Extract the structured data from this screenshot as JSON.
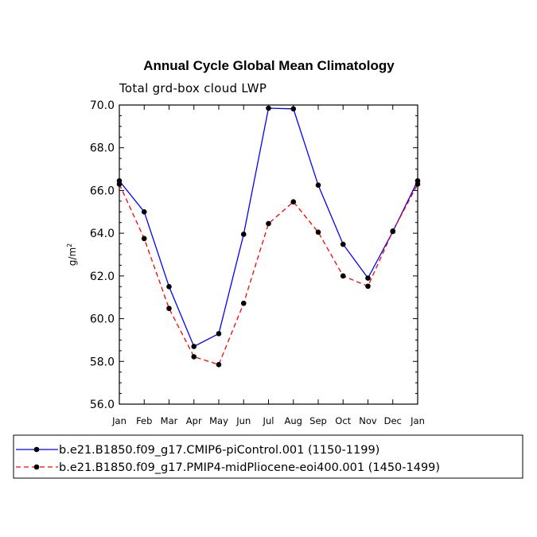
{
  "chart_data": {
    "type": "line",
    "title": "Annual Cycle Global Mean Climatology",
    "subtitle": "Total grd-box cloud LWP",
    "ylabel": "g/m",
    "ylabel_superscript": "2",
    "ylim": [
      56.0,
      70.0
    ],
    "yticks": [
      "56.0",
      "58.0",
      "60.0",
      "62.0",
      "64.0",
      "66.0",
      "68.0",
      "70.0"
    ],
    "ytick_values": [
      56,
      58,
      60,
      62,
      64,
      66,
      68,
      70
    ],
    "categories": [
      "Jan",
      "Feb",
      "Mar",
      "Apr",
      "May",
      "Jun",
      "Jul",
      "Aug",
      "Sep",
      "Oct",
      "Nov",
      "Dec",
      "Jan"
    ],
    "series": [
      {
        "name": "b.e21.B1850.f09_g17.CMIP6-piControl.001 (1150-1199)",
        "color": "#0000ff",
        "dash": "solid",
        "values": [
          66.45,
          65.0,
          61.5,
          58.7,
          59.3,
          63.95,
          69.85,
          69.82,
          66.25,
          63.48,
          61.9,
          64.08,
          66.45
        ]
      },
      {
        "name": "b.e21.B1850.f09_g17.PMIP4-midPliocene-eoi400.001 (1450-1499)",
        "color": "#ff0000",
        "dash": "dashed",
        "values": [
          66.3,
          63.75,
          60.48,
          58.22,
          57.85,
          60.72,
          64.45,
          65.47,
          64.05,
          62.0,
          61.52,
          64.1,
          66.3
        ]
      }
    ]
  }
}
